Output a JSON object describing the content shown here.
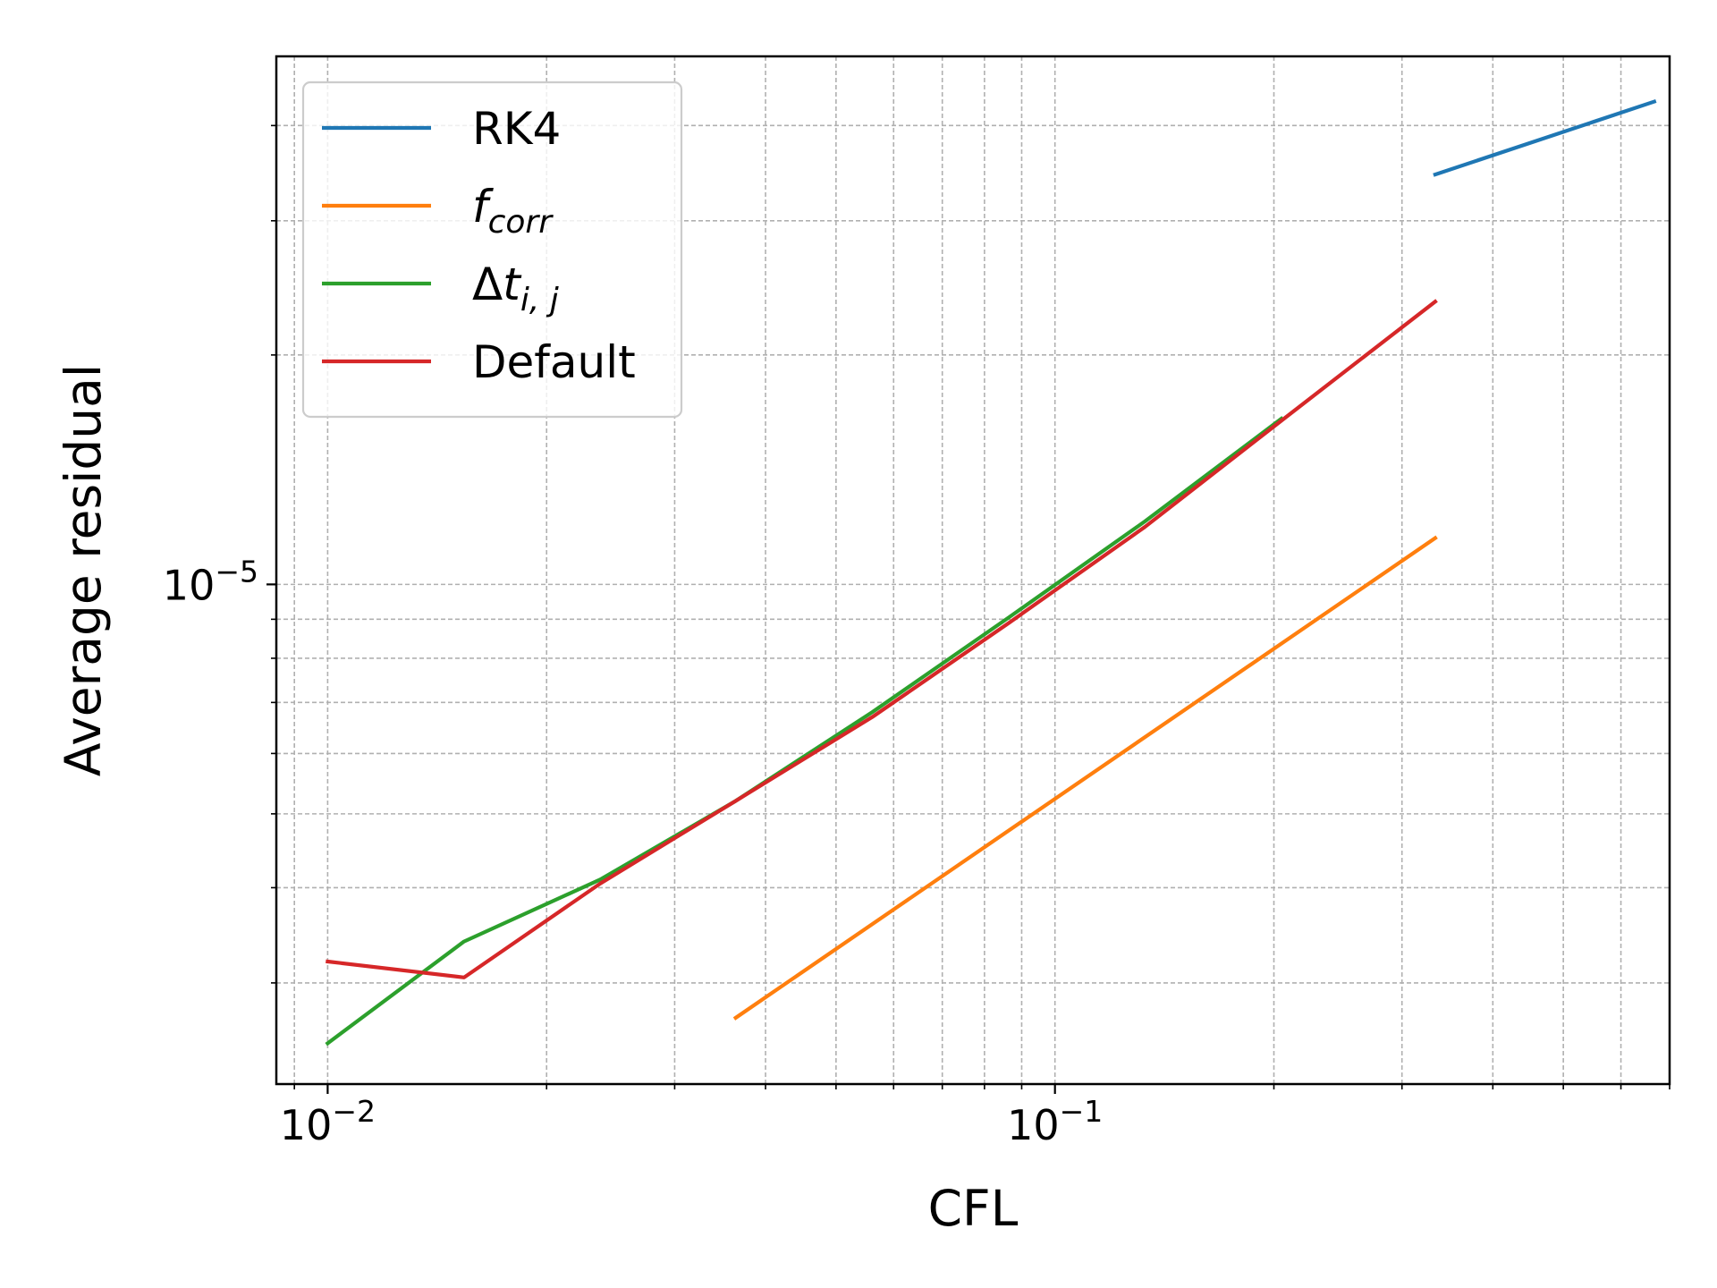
{
  "chart_data": {
    "type": "line",
    "xlabel": "CFL",
    "ylabel": "Average residual",
    "x_scale": "log",
    "y_scale": "log",
    "xlim": [
      0.0085,
      0.7
    ],
    "ylim": [
      2.21e-06,
      4.93e-05
    ],
    "grid": true,
    "grid_minor": true,
    "legend_position": "top-left",
    "x_ticks": [
      {
        "value": 0.01,
        "base": "10",
        "exp": "−2"
      },
      {
        "value": 0.1,
        "base": "10",
        "exp": "−1"
      }
    ],
    "y_ticks": [
      {
        "value": 1e-05,
        "base": "10",
        "exp": "−5"
      }
    ],
    "series": [
      {
        "name": "RK4",
        "name_parts": [
          {
            "text": "RK4",
            "style": "normal"
          }
        ],
        "color": "#1f77b4",
        "x": [
          0.3333,
          0.6667
        ],
        "y": [
          3.45e-05,
          4.3e-05
        ]
      },
      {
        "name": "f_corr",
        "name_parts": [
          {
            "text": "f",
            "style": "italic"
          },
          {
            "text": "corr",
            "style": "italic-sub"
          }
        ],
        "color": "#ff7f0e",
        "x": [
          0.0364,
          0.3333
        ],
        "y": [
          2.7e-06,
          1.15e-05
        ]
      },
      {
        "name": "Δt_i,j",
        "name_parts": [
          {
            "text": "Δ",
            "style": "normal"
          },
          {
            "text": "t",
            "style": "italic"
          },
          {
            "text": "i, j",
            "style": "italic-sub"
          }
        ],
        "color": "#2ca02c",
        "x": [
          0.01,
          0.0154,
          0.0237,
          0.0364,
          0.0561,
          0.0864,
          0.133,
          0.2048
        ],
        "y": [
          2.5e-06,
          3.4e-06,
          4.1e-06,
          5.2e-06,
          6.8e-06,
          9.05e-06,
          1.21e-05,
          1.65e-05
        ]
      },
      {
        "name": "Default",
        "name_parts": [
          {
            "text": "Default",
            "style": "normal"
          }
        ],
        "color": "#d62728",
        "x": [
          0.01,
          0.0154,
          0.0237,
          0.0364,
          0.0561,
          0.0864,
          0.133,
          0.2048,
          0.3333
        ],
        "y": [
          3.2e-06,
          3.05e-06,
          4.05e-06,
          5.2e-06,
          6.7e-06,
          8.9e-06,
          1.19e-05,
          1.64e-05,
          2.35e-05
        ]
      }
    ]
  }
}
